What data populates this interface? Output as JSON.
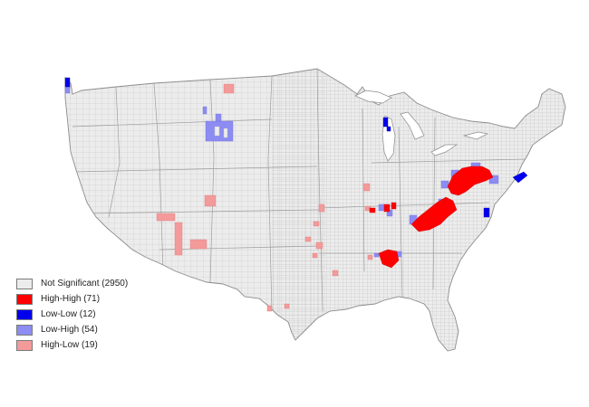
{
  "map": {
    "legend": [
      {
        "label": "Not Significant (2950)",
        "color": "#ececec"
      },
      {
        "label": "High-High (71)",
        "color": "#ff0000"
      },
      {
        "label": "Low-Low (12)",
        "color": "#0000ee"
      },
      {
        "label": "Low-High (54)",
        "color": "#8c8cf2"
      },
      {
        "label": "High-Low (19)",
        "color": "#f39a9a"
      }
    ]
  }
}
